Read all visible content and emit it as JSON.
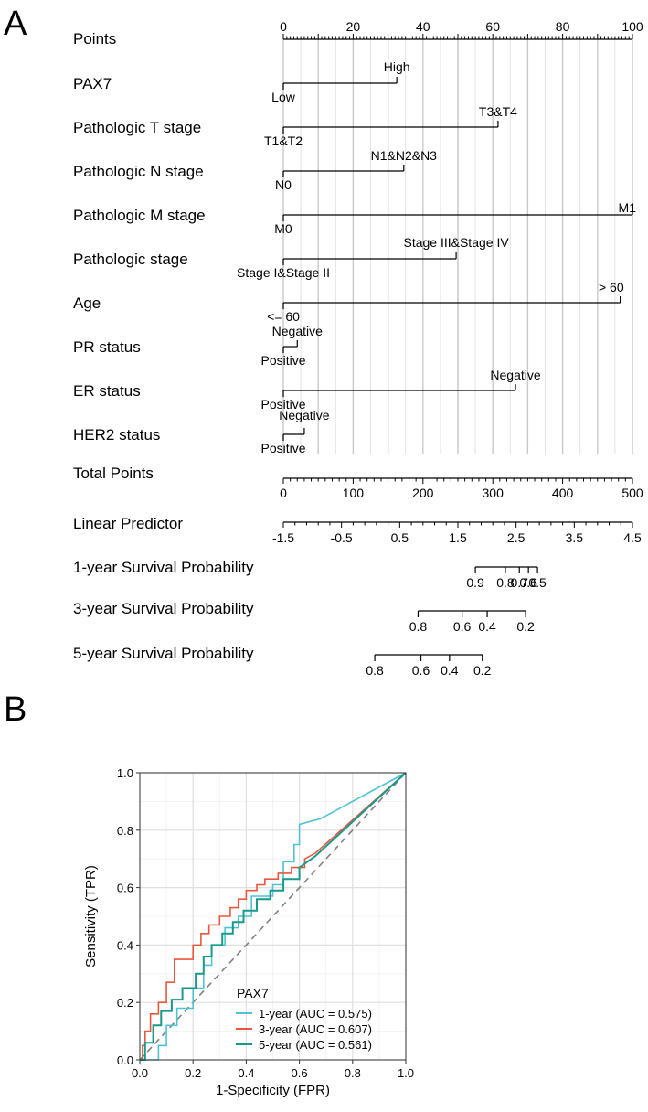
{
  "panel_a_label": "A",
  "panel_b_label": "B",
  "chart_data": [
    {
      "type": "nomogram",
      "points_axis": {
        "range": [
          0,
          100
        ],
        "major_ticks": [
          0,
          20,
          40,
          60,
          80,
          100
        ]
      },
      "variables": [
        {
          "name": "PAX7",
          "levels": [
            {
              "label": "Low",
              "points": 0
            },
            {
              "label": "High",
              "points": 32.5
            }
          ]
        },
        {
          "name": "Pathologic T stage",
          "levels": [
            {
              "label": "T1&T2",
              "points": 0
            },
            {
              "label": "T3&T4",
              "points": 61.5
            }
          ]
        },
        {
          "name": "Pathologic N stage",
          "levels": [
            {
              "label": "N0",
              "points": 0
            },
            {
              "label": "N1&N2&N3",
              "points": 34.5
            }
          ]
        },
        {
          "name": "Pathologic M stage",
          "levels": [
            {
              "label": "M0",
              "points": 0
            },
            {
              "label": "M1",
              "points": 100
            }
          ]
        },
        {
          "name": "Pathologic stage",
          "levels": [
            {
              "label": "Stage I&Stage II",
              "points": 0
            },
            {
              "label": "Stage III&Stage IV",
              "points": 49.5
            }
          ]
        },
        {
          "name": "Age",
          "levels": [
            {
              "label": "<= 60",
              "points": 0
            },
            {
              "label": "> 60",
              "points": 96.5
            }
          ]
        },
        {
          "name": "PR status",
          "levels": [
            {
              "label": "Positive",
              "points": 0
            },
            {
              "label": "Negative",
              "points": 4
            }
          ]
        },
        {
          "name": "ER status",
          "levels": [
            {
              "label": "Positive",
              "points": 0
            },
            {
              "label": "Negative",
              "points": 66.5
            }
          ]
        },
        {
          "name": "HER2 status",
          "levels": [
            {
              "label": "Positive",
              "points": 0
            },
            {
              "label": "Negative",
              "points": 6
            }
          ]
        }
      ],
      "total_points": {
        "name": "Total Points",
        "range": [
          0,
          500
        ],
        "major_ticks": [
          0,
          100,
          200,
          300,
          400,
          500
        ]
      },
      "linear_predictor": {
        "name": "Linear Predictor",
        "range": [
          -1.5,
          4.5
        ],
        "major_ticks": [
          -1.5,
          -0.5,
          0.5,
          1.5,
          2.5,
          3.5,
          4.5
        ]
      },
      "survival_scales": [
        {
          "name": "1-year Survival Probability",
          "ticks": [
            {
              "label": "0.9",
              "total_points": 275
            },
            {
              "label": "0.8",
              "total_points": 318
            },
            {
              "label": "0.7",
              "total_points": 338
            },
            {
              "label": "0.6",
              "total_points": 351
            },
            {
              "label": "0.5",
              "total_points": 364
            }
          ]
        },
        {
          "name": "3-year Survival Probability",
          "ticks": [
            {
              "label": "0.8",
              "total_points": 193
            },
            {
              "label": "0.6",
              "total_points": 256
            },
            {
              "label": "0.4",
              "total_points": 292
            },
            {
              "label": "0.2",
              "total_points": 347
            }
          ]
        },
        {
          "name": "5-year Survival Probability",
          "ticks": [
            {
              "label": "0.8",
              "total_points": 131
            },
            {
              "label": "0.6",
              "total_points": 197
            },
            {
              "label": "0.4",
              "total_points": 238
            },
            {
              "label": "0.2",
              "total_points": 285
            }
          ]
        }
      ]
    },
    {
      "type": "line",
      "xlabel": "1-Specificity (FPR)",
      "ylabel": "Sensitivity (TPR)",
      "xlim": [
        0,
        1
      ],
      "ylim": [
        0,
        1
      ],
      "ticks": [
        0.0,
        0.2,
        0.4,
        0.6,
        0.8,
        1.0
      ],
      "tick_labels": [
        "0.0",
        "0.2",
        "0.4",
        "0.6",
        "0.8",
        "1.0"
      ],
      "grid": true,
      "legend_title": "PAX7",
      "legend_position": "bottom-right",
      "series": [
        {
          "name": "1-year (AUC = 0.575)",
          "color": "#4fc3d4",
          "x": [
            0,
            0.07,
            0.07,
            0.1,
            0.1,
            0.14,
            0.14,
            0.2,
            0.2,
            0.24,
            0.24,
            0.27,
            0.27,
            0.32,
            0.32,
            0.37,
            0.37,
            0.42,
            0.42,
            0.5,
            0.5,
            0.54,
            0.54,
            0.58,
            0.58,
            0.6,
            0.6,
            0.68,
            1.0
          ],
          "y": [
            0,
            0,
            0.05,
            0.05,
            0.12,
            0.12,
            0.18,
            0.18,
            0.25,
            0.25,
            0.33,
            0.33,
            0.4,
            0.4,
            0.46,
            0.46,
            0.5,
            0.5,
            0.57,
            0.57,
            0.61,
            0.61,
            0.69,
            0.69,
            0.75,
            0.75,
            0.82,
            0.84,
            1.0
          ]
        },
        {
          "name": "3-year (AUC = 0.607)",
          "color": "#e8573c",
          "x": [
            0,
            0.01,
            0.01,
            0.02,
            0.02,
            0.04,
            0.04,
            0.07,
            0.07,
            0.1,
            0.1,
            0.13,
            0.13,
            0.2,
            0.2,
            0.23,
            0.23,
            0.26,
            0.26,
            0.3,
            0.3,
            0.34,
            0.34,
            0.37,
            0.37,
            0.4,
            0.4,
            0.44,
            0.44,
            0.47,
            0.47,
            0.52,
            0.52,
            0.57,
            0.57,
            0.62,
            0.62,
            0.66,
            1.0
          ],
          "y": [
            0,
            0,
            0.05,
            0.05,
            0.1,
            0.1,
            0.16,
            0.16,
            0.2,
            0.2,
            0.27,
            0.27,
            0.35,
            0.35,
            0.4,
            0.4,
            0.44,
            0.44,
            0.47,
            0.47,
            0.5,
            0.5,
            0.53,
            0.53,
            0.56,
            0.56,
            0.59,
            0.59,
            0.61,
            0.61,
            0.63,
            0.63,
            0.65,
            0.65,
            0.67,
            0.67,
            0.7,
            0.72,
            1.0
          ]
        },
        {
          "name": "5-year (AUC = 0.561)",
          "color": "#18998c",
          "x": [
            0,
            0.02,
            0.02,
            0.05,
            0.05,
            0.08,
            0.08,
            0.12,
            0.12,
            0.16,
            0.16,
            0.21,
            0.21,
            0.24,
            0.24,
            0.27,
            0.27,
            0.31,
            0.31,
            0.35,
            0.35,
            0.39,
            0.39,
            0.44,
            0.44,
            0.49,
            0.49,
            0.54,
            0.54,
            0.6,
            0.6,
            0.66,
            1.0
          ],
          "y": [
            0,
            0,
            0.06,
            0.06,
            0.12,
            0.12,
            0.17,
            0.17,
            0.21,
            0.21,
            0.25,
            0.25,
            0.3,
            0.3,
            0.36,
            0.36,
            0.4,
            0.4,
            0.44,
            0.44,
            0.48,
            0.48,
            0.52,
            0.52,
            0.56,
            0.56,
            0.59,
            0.59,
            0.63,
            0.63,
            0.67,
            0.71,
            1.0
          ]
        }
      ],
      "reference_line": {
        "x": [
          0,
          1
        ],
        "y": [
          0,
          1
        ],
        "color": "#808080",
        "style": "dashed"
      }
    }
  ]
}
